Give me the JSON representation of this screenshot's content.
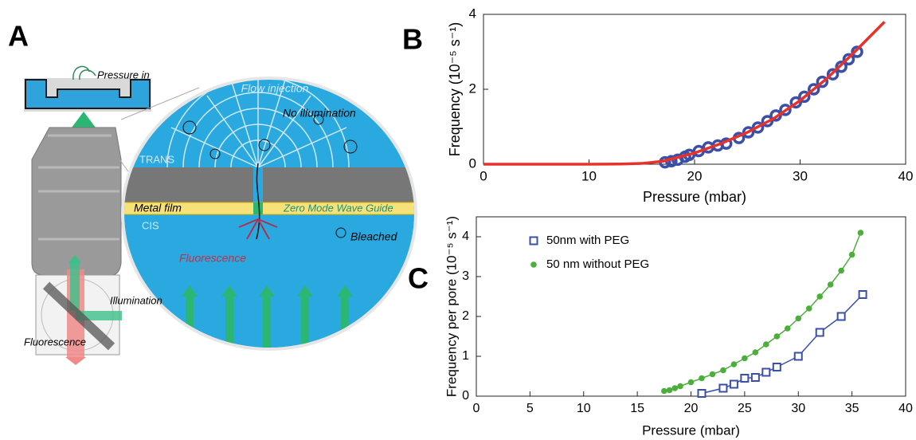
{
  "panels": {
    "a": "A",
    "b": "B",
    "c": "C"
  },
  "diagram": {
    "labels": [
      "Pressure in",
      "Flow injection",
      "No illumination",
      "TRANS",
      "Metal film",
      "Zero Mode Wave Guide",
      "CIS",
      "Bleached",
      "Fluorescence",
      "Illumination",
      "Fluorescence"
    ]
  },
  "chart_data": [
    {
      "type": "scatter",
      "xlabel": "Pressure (mbar)",
      "ylabel": "Frequency (10⁻⁵ s⁻¹)",
      "xlim": [
        0,
        40
      ],
      "ylim": [
        0,
        4
      ],
      "xticks": [
        0,
        10,
        20,
        30,
        40
      ],
      "yticks": [
        0,
        2,
        4
      ],
      "series": [
        {
          "color": "#3b4fa8",
          "marker": "circle",
          "x": [
            17.2,
            17.8,
            18.4,
            19.1,
            19.5,
            20.4,
            21.3,
            22.2,
            23.0,
            24.2,
            25.1,
            26.0,
            26.9,
            27.7,
            28.6,
            29.6,
            30.4,
            31.3,
            32.1,
            33.1,
            33.9,
            34.6,
            35.4
          ],
          "values": [
            0.05,
            0.08,
            0.12,
            0.2,
            0.25,
            0.35,
            0.45,
            0.5,
            0.55,
            0.7,
            0.85,
            0.98,
            1.15,
            1.3,
            1.45,
            1.65,
            1.8,
            2.0,
            2.2,
            2.4,
            2.6,
            2.8,
            3.0
          ]
        },
        {
          "color": "#e8312a",
          "marker": "none",
          "x": [
            0,
            10,
            13,
            15,
            17,
            20,
            22.5,
            25,
            27.5,
            30,
            32.5,
            35,
            38
          ],
          "values": [
            0,
            0,
            0.005,
            0.02,
            0.08,
            0.3,
            0.55,
            0.85,
            1.22,
            1.7,
            2.28,
            2.95,
            3.8
          ]
        }
      ]
    },
    {
      "type": "scatter",
      "xlabel": "Pressure (mbar)",
      "ylabel": "Frequency per pore (10⁻⁵ s⁻¹)",
      "xlim": [
        0,
        40
      ],
      "ylim": [
        0,
        4.5
      ],
      "xticks": [
        0,
        5,
        10,
        15,
        20,
        25,
        30,
        35,
        40
      ],
      "yticks": [
        0,
        1,
        2,
        3,
        4
      ],
      "legend": "upper left",
      "series": [
        {
          "name": "50nm with PEG",
          "color": "#3b4fa8",
          "marker": "square",
          "line": true,
          "x": [
            21,
            23,
            24,
            25,
            26,
            27,
            28,
            30,
            32,
            34,
            36
          ],
          "values": [
            0.07,
            0.2,
            0.3,
            0.45,
            0.47,
            0.6,
            0.73,
            1.0,
            1.6,
            2.0,
            2.55
          ]
        },
        {
          "name": "50 nm without PEG",
          "color": "#4caf3c",
          "marker": "dot",
          "line": true,
          "x": [
            17.5,
            18,
            18.5,
            19,
            20,
            21,
            22,
            23,
            24,
            25,
            26,
            27,
            28,
            29,
            30,
            31,
            32,
            33,
            34,
            35,
            35.8
          ],
          "values": [
            0.13,
            0.15,
            0.2,
            0.25,
            0.35,
            0.45,
            0.55,
            0.65,
            0.8,
            0.95,
            1.1,
            1.3,
            1.5,
            1.7,
            1.95,
            2.2,
            2.5,
            2.8,
            3.15,
            3.55,
            4.1
          ]
        }
      ]
    }
  ]
}
